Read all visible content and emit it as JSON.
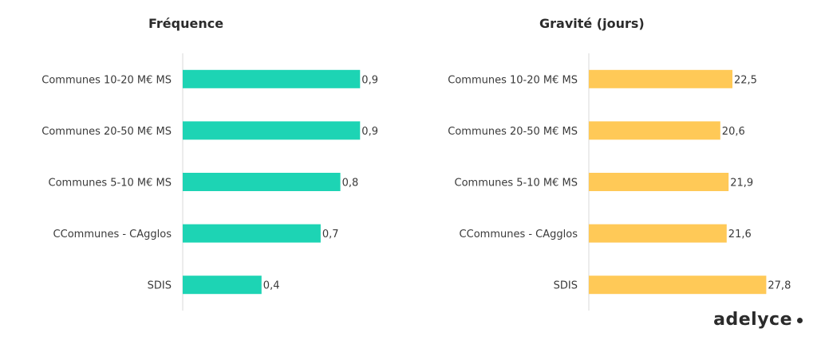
{
  "chart_data": [
    {
      "type": "bar",
      "orientation": "horizontal",
      "title": "Fréquence",
      "categories": [
        "Communes 10-20 M€ MS",
        "Communes 20-50 M€ MS",
        "Communes 5-10 M€ MS",
        "CCommunes - CAgglos",
        "SDIS"
      ],
      "values": [
        0.9,
        0.9,
        0.8,
        0.7,
        0.4
      ],
      "value_labels": [
        "0,9",
        "0,9",
        "0,8",
        "0,7",
        "0,4"
      ],
      "color": "#1DD4B4",
      "xlim": [
        0,
        1.0
      ]
    },
    {
      "type": "bar",
      "orientation": "horizontal",
      "title": "Gravité (jours)",
      "categories": [
        "Communes 10-20 M€ MS",
        "Communes 20-50 M€ MS",
        "Communes 5-10 M€ MS",
        "CCommunes - CAgglos",
        "SDIS"
      ],
      "values": [
        22.5,
        20.6,
        21.9,
        21.6,
        27.8
      ],
      "value_labels": [
        "22,5",
        "20,6",
        "21,9",
        "21,6",
        "27,8"
      ],
      "color": "#FFC957",
      "xlim": [
        0,
        31.5
      ]
    }
  ],
  "logo": {
    "text": "adelyce"
  }
}
